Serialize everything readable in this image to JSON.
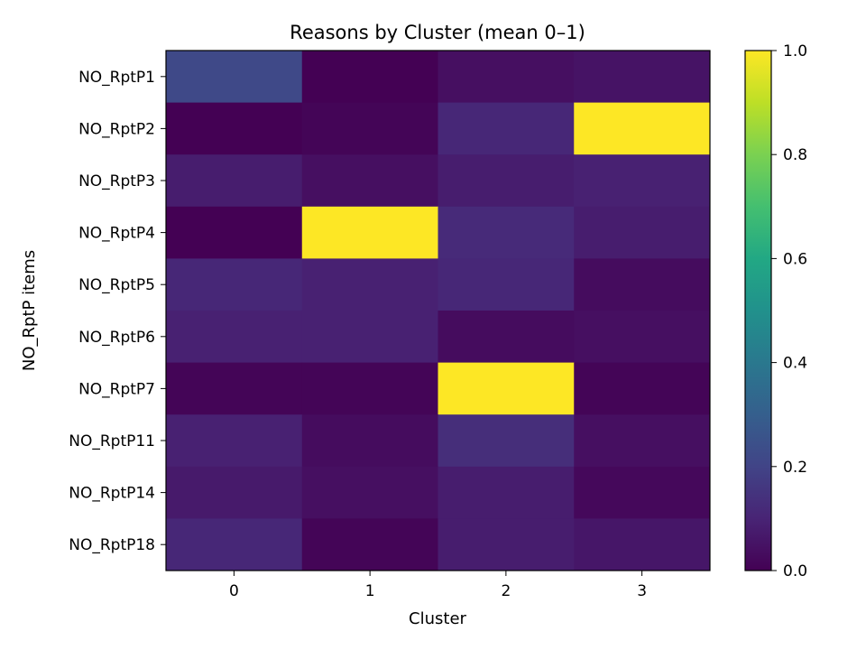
{
  "chart_data": {
    "type": "heatmap",
    "title": "Reasons by Cluster (mean 0–1)",
    "xlabel": "Cluster",
    "ylabel": "NO_RptP items",
    "x_categories": [
      "0",
      "1",
      "2",
      "3"
    ],
    "y_categories": [
      "NO_RptP1",
      "NO_RptP2",
      "NO_RptP3",
      "NO_RptP4",
      "NO_RptP5",
      "NO_RptP6",
      "NO_RptP7",
      "NO_RptP11",
      "NO_RptP14",
      "NO_RptP18"
    ],
    "values": [
      [
        0.22,
        0.0,
        0.04,
        0.05
      ],
      [
        0.0,
        0.01,
        0.11,
        1.0
      ],
      [
        0.08,
        0.04,
        0.08,
        0.09
      ],
      [
        0.0,
        1.0,
        0.12,
        0.08
      ],
      [
        0.11,
        0.09,
        0.11,
        0.03
      ],
      [
        0.09,
        0.09,
        0.03,
        0.04
      ],
      [
        0.01,
        0.01,
        1.0,
        0.01
      ],
      [
        0.09,
        0.03,
        0.13,
        0.04
      ],
      [
        0.07,
        0.04,
        0.08,
        0.02
      ],
      [
        0.11,
        0.01,
        0.08,
        0.06
      ]
    ],
    "colormap": "viridis",
    "colorbar": {
      "range": [
        0,
        1
      ],
      "ticks": [
        "0.0",
        "0.2",
        "0.4",
        "0.6",
        "0.8",
        "1.0"
      ]
    },
    "grid": false
  }
}
